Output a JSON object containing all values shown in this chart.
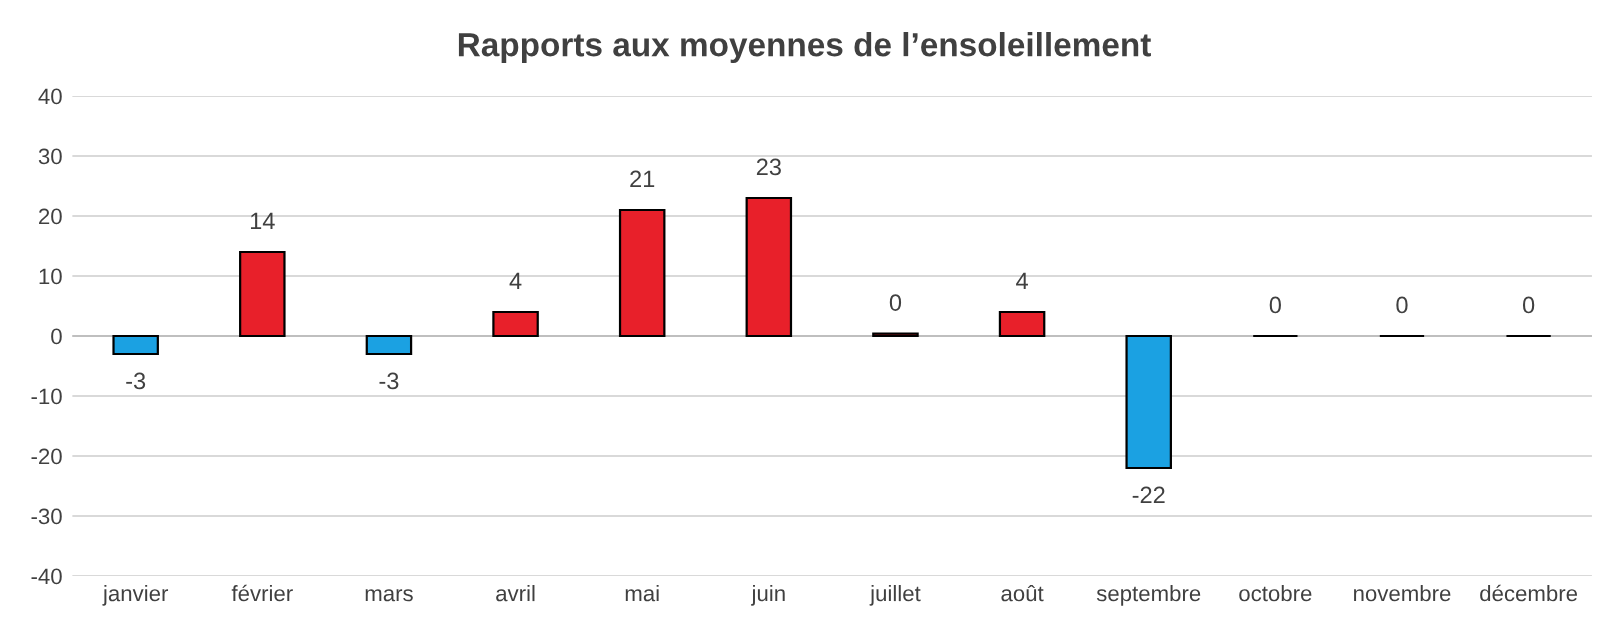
{
  "chart_data": {
    "type": "bar",
    "title": "Rapports aux moyennes de l’ensoleillement",
    "categories": [
      "janvier",
      "février",
      "mars",
      "avril",
      "mai",
      "juin",
      "juillet",
      "août",
      "septembre",
      "octobre",
      "novembre",
      "décembre"
    ],
    "values": [
      -3,
      14,
      -3,
      4,
      21,
      23,
      0.4,
      4,
      -22,
      0,
      0,
      0
    ],
    "colors": [
      "#1ba1e2",
      "#e8202a",
      "#1ba1e2",
      "#e8202a",
      "#e8202a",
      "#e8202a",
      "#e8202a",
      "#e8202a",
      "#1ba1e2",
      "#000000",
      "#000000",
      "#000000"
    ],
    "value_labels": [
      "-3",
      "14",
      "-3",
      "4",
      "21",
      "23",
      "0",
      "4",
      "-22",
      "0",
      "0",
      "0"
    ],
    "ylim": [
      -40,
      40
    ],
    "yticks": [
      -40,
      -30,
      -20,
      -10,
      0,
      10,
      20,
      30,
      40
    ],
    "grid": "y"
  }
}
